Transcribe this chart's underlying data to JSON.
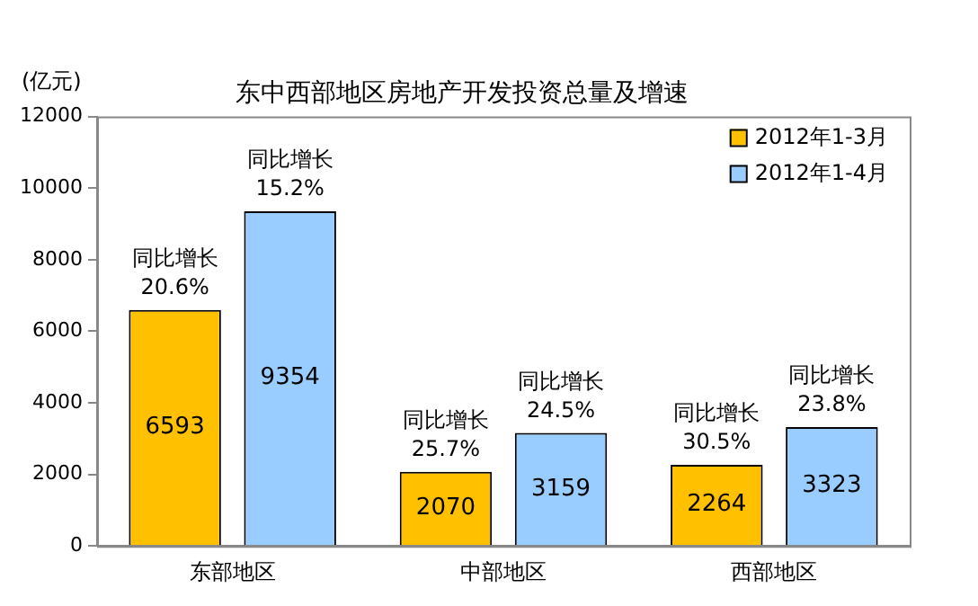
{
  "chart_data": {
    "type": "bar",
    "title": "东中西部地区房地产开发投资总量及增速",
    "ylabel": "(亿元)",
    "categories": [
      "东部地区",
      "中部地区",
      "西部地区"
    ],
    "series": [
      {
        "name": "2012年1-3月",
        "color": "#ffc000",
        "values": [
          6593,
          2070,
          2264
        ]
      },
      {
        "name": "2012年1-4月",
        "color": "#99ccff",
        "values": [
          9354,
          3159,
          3323
        ]
      }
    ],
    "ylim": [
      0,
      12000
    ],
    "yticks": [
      0,
      2000,
      4000,
      6000,
      8000,
      10000,
      12000
    ],
    "grid": false,
    "legend": "top right",
    "data_labels": true,
    "annotations": [
      "同比增长\n20.6%",
      "同比增长\n15.2%",
      "同比增长\n25.7%",
      "同比增长\n24.5%",
      "同比增长\n30.5%",
      "同比增长\n23.8%"
    ]
  }
}
